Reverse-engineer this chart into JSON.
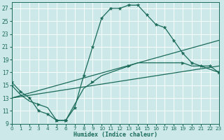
{
  "xlabel": "Humidex (Indice chaleur)",
  "bg_color": "#cce8e8",
  "line_color": "#1a6b5a",
  "xlim": [
    0,
    23
  ],
  "ylim": [
    9,
    28
  ],
  "xticks": [
    0,
    1,
    2,
    3,
    4,
    5,
    6,
    7,
    8,
    9,
    10,
    11,
    12,
    13,
    14,
    15,
    16,
    17,
    18,
    19,
    20,
    21,
    22,
    23
  ],
  "yticks": [
    9,
    11,
    13,
    15,
    17,
    19,
    21,
    23,
    25,
    27
  ],
  "main_x": [
    0,
    1,
    2,
    3,
    4,
    5,
    6,
    7,
    8,
    9,
    10,
    11,
    12,
    13,
    14,
    15,
    16,
    17,
    18,
    19,
    20,
    21,
    22,
    23
  ],
  "main_y": [
    15.5,
    14.0,
    13.0,
    11.0,
    10.5,
    9.5,
    9.5,
    11.5,
    16.5,
    21.0,
    25.5,
    27.0,
    27.0,
    27.5,
    27.5,
    26.0,
    24.5,
    24.0,
    22.0,
    20.0,
    18.5,
    18.0,
    18.0,
    17.0
  ],
  "lower_x": [
    0,
    1,
    2,
    3,
    4,
    5,
    6,
    7,
    8,
    9,
    10,
    11,
    12,
    13,
    14,
    19,
    20,
    21,
    22,
    23
  ],
  "lower_y": [
    15.0,
    13.5,
    12.5,
    12.0,
    11.5,
    9.5,
    9.5,
    12.0,
    14.5,
    15.5,
    16.5,
    17.0,
    17.5,
    18.0,
    18.5,
    18.5,
    18.0,
    18.0,
    17.5,
    17.0
  ],
  "lower_markers_x": [
    0,
    3,
    5,
    6,
    9,
    13,
    19,
    23
  ],
  "lower_markers_y": [
    15.0,
    12.0,
    9.5,
    9.5,
    15.5,
    18.0,
    18.5,
    17.0
  ],
  "trend1_x": [
    0,
    23
  ],
  "trend1_y": [
    13.0,
    22.0
  ],
  "trend2_x": [
    0,
    23
  ],
  "trend2_y": [
    13.0,
    18.0
  ]
}
